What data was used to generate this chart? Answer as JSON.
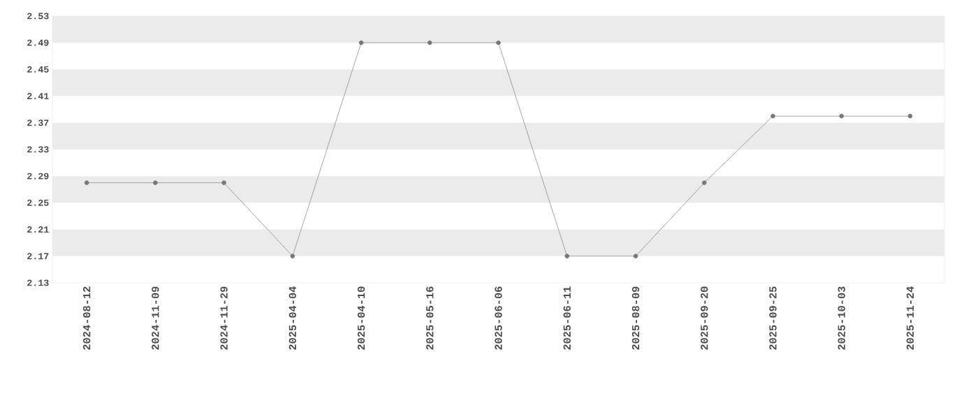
{
  "chart_data": {
    "type": "line",
    "categories": [
      "2024-08-12",
      "2024-11-09",
      "2024-11-29",
      "2025-04-04",
      "2025-04-10",
      "2025-05-16",
      "2025-06-06",
      "2025-06-11",
      "2025-08-09",
      "2025-09-20",
      "2025-09-25",
      "2025-10-03",
      "2025-11-24"
    ],
    "series": [
      {
        "color": "#777777",
        "values": [
          2.28,
          2.28,
          2.28,
          2.17,
          2.49,
          2.49,
          2.49,
          2.17,
          2.17,
          2.28,
          2.38,
          2.38,
          2.38
        ]
      }
    ],
    "ylim": [
      2.13,
      2.53
    ],
    "yticks": [
      2.13,
      2.17,
      2.21,
      2.25,
      2.29,
      2.33,
      2.37,
      2.41,
      2.45,
      2.49,
      2.53
    ],
    "bands": [
      {
        "axis": "y",
        "from": 2.17,
        "to": 2.21,
        "color": "#ebebeb"
      },
      {
        "axis": "y",
        "from": 2.25,
        "to": 2.29,
        "color": "#ebebeb"
      },
      {
        "axis": "y",
        "from": 2.33,
        "to": 2.37,
        "color": "#ebebeb"
      },
      {
        "axis": "y",
        "from": 2.41,
        "to": 2.45,
        "color": "#ebebeb"
      },
      {
        "axis": "y",
        "from": 2.49,
        "to": 2.53,
        "color": "#ebebeb"
      }
    ],
    "marker": "circle",
    "line_style": "solid"
  }
}
